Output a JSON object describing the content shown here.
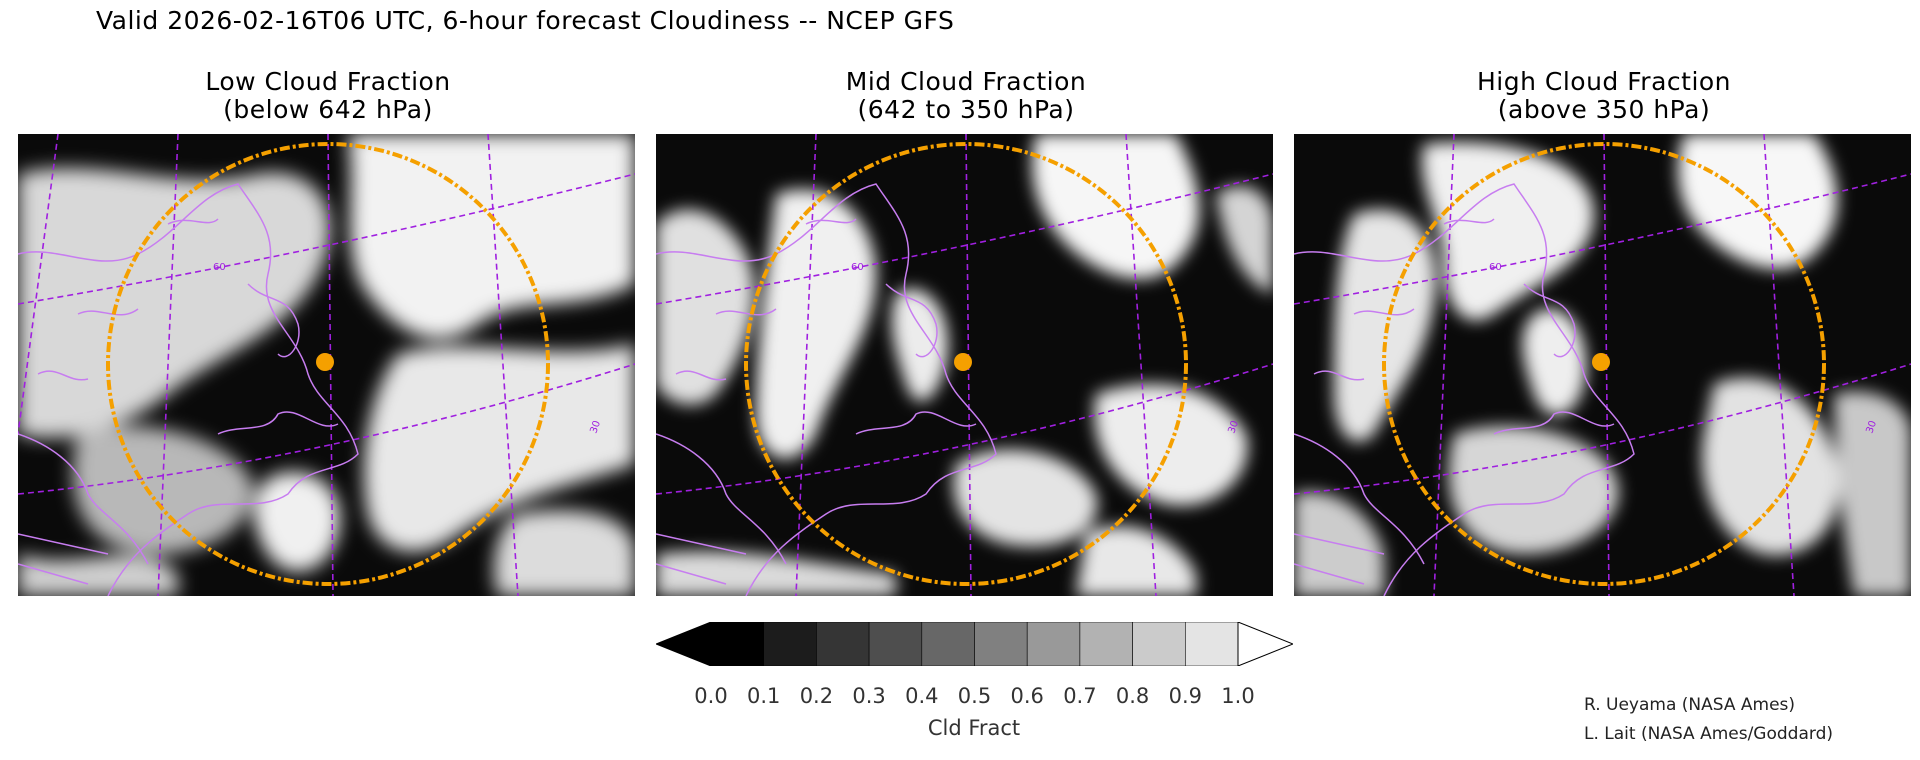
{
  "header": {
    "title": "Valid 2026-02-16T06 UTC, 6-hour forecast Cloudiness -- NCEP GFS"
  },
  "panels": [
    {
      "title_line1": "Low Cloud Fraction",
      "title_line2": "(below 642 hPa)",
      "lat_label": "60",
      "lon_label": "30"
    },
    {
      "title_line1": "Mid Cloud Fraction",
      "title_line2": "(642 to 350 hPa)",
      "lat_label": "60",
      "lon_label": "30"
    },
    {
      "title_line1": "High Cloud Fraction",
      "title_line2": "(above 350 hPa)",
      "lat_label": "60",
      "lon_label": "30"
    }
  ],
  "colors": {
    "coastline": "#c77df0",
    "graticule": "#a020e0",
    "range_ring": "#f5a000",
    "site_marker": "#f5a000",
    "land_background": "#0a0a0a"
  },
  "colorbar": {
    "ticks": [
      "0.0",
      "0.1",
      "0.2",
      "0.3",
      "0.4",
      "0.5",
      "0.6",
      "0.7",
      "0.8",
      "0.9",
      "1.0"
    ],
    "unit": "Cld Fract",
    "shades": [
      "#000000",
      "#1c1c1c",
      "#353535",
      "#4e4e4e",
      "#676767",
      "#808080",
      "#999999",
      "#b2b2b2",
      "#cbcbcb",
      "#e4e4e4"
    ]
  },
  "credits": {
    "line1": "R. Ueyama (NASA Ames)",
    "line2": "L. Lait (NASA Ames/Goddard)"
  }
}
